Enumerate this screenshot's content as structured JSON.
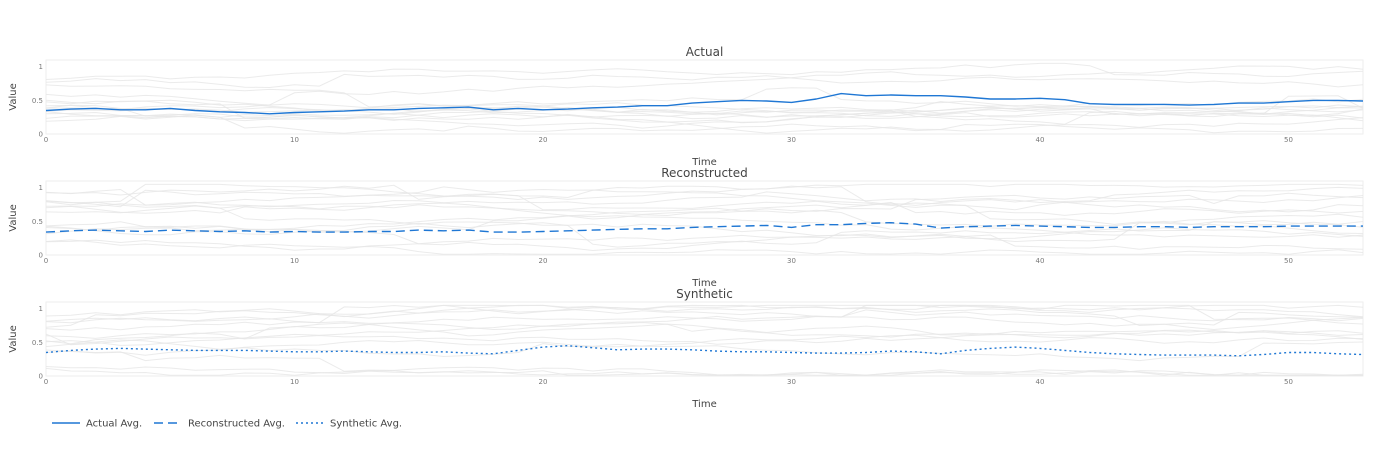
{
  "chart_data": [
    {
      "type": "line",
      "title": "Actual",
      "xlabel": "Time",
      "ylabel": "Value",
      "xlim": [
        0,
        53
      ],
      "ylim": [
        0,
        1.1
      ],
      "x_ticks": [
        "0",
        "10",
        "20",
        "30",
        "40",
        "50"
      ],
      "y_ticks": [
        "0",
        "0.5",
        "1"
      ],
      "grid": false,
      "series": [
        {
          "name": "Actual Avg.",
          "dash": "solid",
          "x": [
            0,
            1,
            2,
            3,
            4,
            5,
            6,
            7,
            8,
            9,
            10,
            11,
            12,
            13,
            14,
            15,
            16,
            17,
            18,
            19,
            20,
            21,
            22,
            23,
            24,
            25,
            26,
            27,
            28,
            29,
            30,
            31,
            32,
            33,
            34,
            35,
            36,
            37,
            38,
            39,
            40,
            41,
            42,
            43,
            44,
            45,
            46,
            47,
            48,
            49,
            50,
            51,
            52,
            53
          ],
          "values": [
            0.35,
            0.37,
            0.38,
            0.36,
            0.36,
            0.38,
            0.35,
            0.33,
            0.32,
            0.3,
            0.32,
            0.33,
            0.34,
            0.36,
            0.36,
            0.38,
            0.39,
            0.4,
            0.36,
            0.38,
            0.36,
            0.37,
            0.39,
            0.4,
            0.42,
            0.42,
            0.46,
            0.48,
            0.5,
            0.49,
            0.47,
            0.52,
            0.6,
            0.57,
            0.58,
            0.57,
            0.57,
            0.55,
            0.52,
            0.52,
            0.53,
            0.51,
            0.45,
            0.44,
            0.44,
            0.44,
            0.43,
            0.44,
            0.46,
            0.46,
            0.48,
            0.5,
            0.5,
            0.49
          ]
        }
      ],
      "background_lines": 14
    },
    {
      "type": "line",
      "title": "Reconstructed",
      "xlabel": "Time",
      "ylabel": "Value",
      "xlim": [
        0,
        53
      ],
      "ylim": [
        0,
        1.1
      ],
      "x_ticks": [
        "0",
        "10",
        "20",
        "30",
        "40",
        "50"
      ],
      "y_ticks": [
        "0",
        "0.5",
        "1"
      ],
      "grid": false,
      "series": [
        {
          "name": "Reconstructed Avg.",
          "dash": "dash",
          "x": [
            0,
            1,
            2,
            3,
            4,
            5,
            6,
            7,
            8,
            9,
            10,
            11,
            12,
            13,
            14,
            15,
            16,
            17,
            18,
            19,
            20,
            21,
            22,
            23,
            24,
            25,
            26,
            27,
            28,
            29,
            30,
            31,
            32,
            33,
            34,
            35,
            36,
            37,
            38,
            39,
            40,
            41,
            42,
            43,
            44,
            45,
            46,
            47,
            48,
            49,
            50,
            51,
            52,
            53
          ],
          "values": [
            0.34,
            0.36,
            0.37,
            0.36,
            0.35,
            0.37,
            0.36,
            0.35,
            0.36,
            0.34,
            0.35,
            0.34,
            0.34,
            0.35,
            0.35,
            0.37,
            0.36,
            0.37,
            0.34,
            0.34,
            0.35,
            0.36,
            0.37,
            0.38,
            0.39,
            0.39,
            0.41,
            0.42,
            0.43,
            0.44,
            0.41,
            0.45,
            0.45,
            0.47,
            0.48,
            0.46,
            0.4,
            0.42,
            0.43,
            0.44,
            0.43,
            0.42,
            0.41,
            0.41,
            0.42,
            0.42,
            0.41,
            0.42,
            0.42,
            0.42,
            0.43,
            0.43,
            0.43,
            0.43
          ]
        }
      ],
      "background_lines": 14
    },
    {
      "type": "line",
      "title": "Synthetic",
      "xlabel": "Time",
      "ylabel": "Value",
      "xlim": [
        0,
        53
      ],
      "ylim": [
        0,
        1.1
      ],
      "x_ticks": [
        "0",
        "10",
        "20",
        "30",
        "40",
        "50"
      ],
      "y_ticks": [
        "0",
        "0.5",
        "1"
      ],
      "grid": false,
      "series": [
        {
          "name": "Synthetic Avg.",
          "dash": "dot",
          "x": [
            0,
            1,
            2,
            3,
            4,
            5,
            6,
            7,
            8,
            9,
            10,
            11,
            12,
            13,
            14,
            15,
            16,
            17,
            18,
            19,
            20,
            21,
            22,
            23,
            24,
            25,
            26,
            27,
            28,
            29,
            30,
            31,
            32,
            33,
            34,
            35,
            36,
            37,
            38,
            39,
            40,
            41,
            42,
            43,
            44,
            45,
            46,
            47,
            48,
            49,
            50,
            51,
            52,
            53
          ],
          "values": [
            0.35,
            0.38,
            0.4,
            0.41,
            0.4,
            0.39,
            0.38,
            0.38,
            0.38,
            0.37,
            0.36,
            0.36,
            0.37,
            0.36,
            0.35,
            0.35,
            0.36,
            0.34,
            0.33,
            0.38,
            0.43,
            0.45,
            0.42,
            0.39,
            0.4,
            0.4,
            0.39,
            0.37,
            0.36,
            0.36,
            0.35,
            0.34,
            0.34,
            0.35,
            0.37,
            0.36,
            0.33,
            0.38,
            0.41,
            0.43,
            0.41,
            0.38,
            0.35,
            0.33,
            0.32,
            0.31,
            0.31,
            0.31,
            0.3,
            0.32,
            0.35,
            0.35,
            0.33,
            0.32
          ]
        }
      ],
      "background_lines": 14
    }
  ],
  "legend": {
    "placement": "bottom-left",
    "items": [
      {
        "label": "Actual Avg.",
        "dash": "solid"
      },
      {
        "label": "Reconstructed Avg.",
        "dash": "dash"
      },
      {
        "label": "Synthetic Avg.",
        "dash": "dot"
      }
    ]
  },
  "colors": {
    "series": "#1f77d4",
    "background_line": "#e6e6e6",
    "axis_line": "#eeeeee"
  }
}
